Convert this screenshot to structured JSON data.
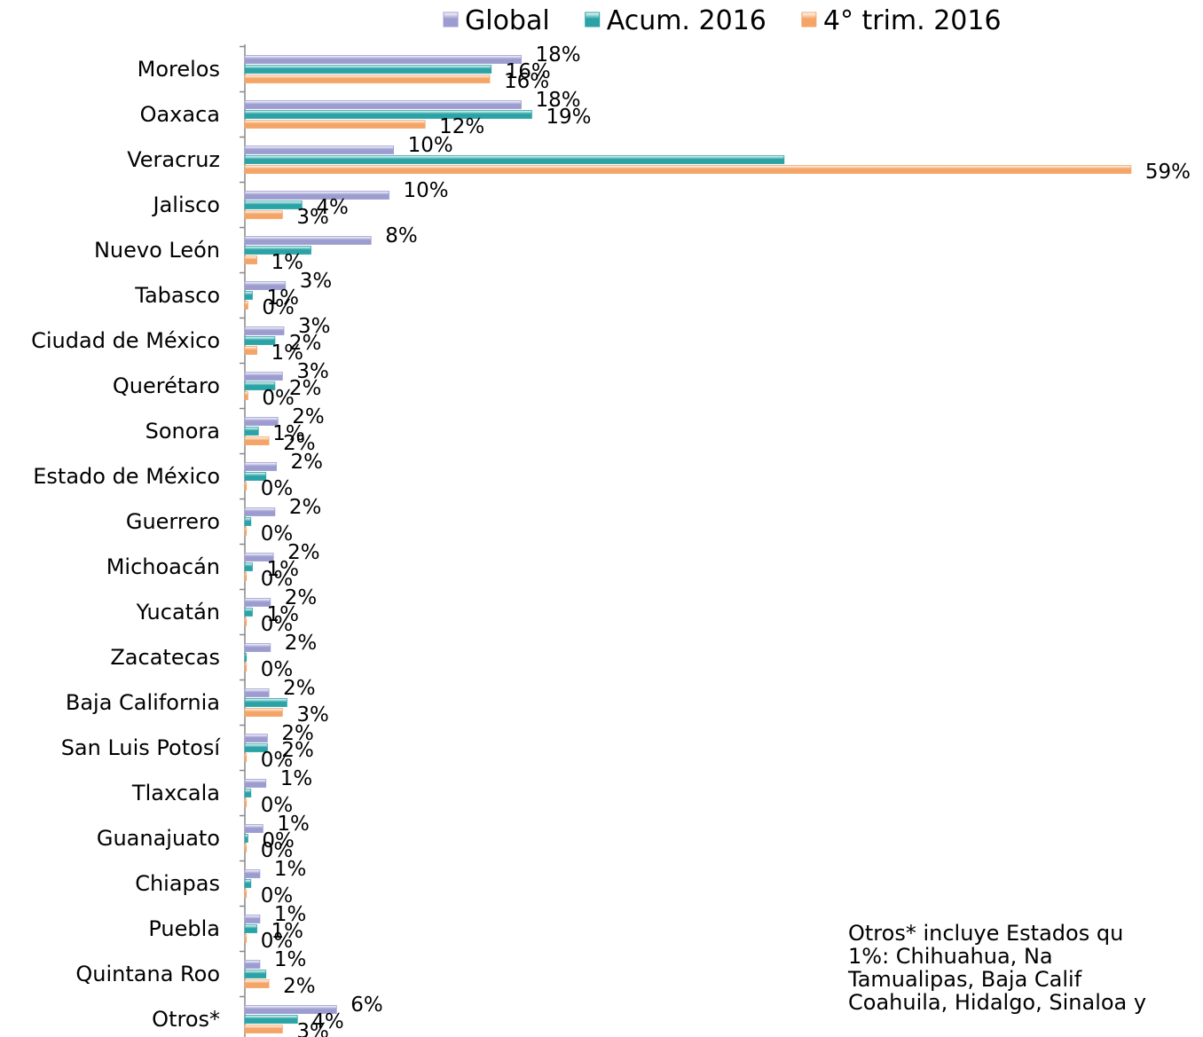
{
  "chart_data": {
    "type": "bar",
    "orientation": "horizontal",
    "categories": [
      "Morelos",
      "Oaxaca",
      "Veracruz",
      "Jalisco",
      "Nuevo León",
      "Tabasco",
      "Ciudad de México",
      "Querétaro",
      "Sonora",
      "Estado de México",
      "Guerrero",
      "Michoacán",
      "Yucatán",
      "Zacatecas",
      "Baja California",
      "San Luis Potosí",
      "Tlaxcala",
      "Guanajuato",
      "Chiapas",
      "Puebla",
      "Quintana Roo",
      "Otros*"
    ],
    "series": [
      {
        "name": "Global",
        "color": "#9c9cd0",
        "values": [
          18.4,
          18.4,
          9.9,
          9.6,
          8.4,
          2.7,
          2.6,
          2.5,
          2.2,
          2.1,
          2.0,
          1.9,
          1.7,
          1.7,
          1.6,
          1.5,
          1.4,
          1.2,
          1.0,
          1.0,
          1.0,
          6.1
        ],
        "value_labels": [
          "18%",
          "18%",
          "10%",
          "10%",
          "8%",
          "3%",
          "3%",
          "3%",
          "2%",
          "2%",
          "2%",
          "2%",
          "2%",
          "2%",
          "2%",
          "2%",
          "1%",
          "1%",
          "1%",
          "1%",
          "1%",
          "6%"
        ]
      },
      {
        "name": "Acum. 2016",
        "color": "#2aa3a6",
        "values": [
          16.4,
          19.1,
          35.9,
          3.8,
          4.4,
          0.5,
          2.0,
          2.0,
          0.9,
          1.4,
          0.4,
          0.5,
          0.5,
          0.1,
          2.8,
          1.5,
          0.4,
          0.2,
          0.4,
          0.8,
          1.4,
          3.5
        ],
        "value_labels": [
          "16%",
          "19%",
          null,
          "4%",
          null,
          "1%",
          "2%",
          "2%",
          "1%",
          null,
          null,
          "1%",
          "1%",
          null,
          null,
          "2%",
          null,
          "0%",
          null,
          "1%",
          null,
          "4%"
        ]
      },
      {
        "name": "4° trim. 2016",
        "color": "#f4a466",
        "values": [
          16.3,
          12.0,
          59,
          2.5,
          0.8,
          0.2,
          0.8,
          0.2,
          1.6,
          0.1,
          0.1,
          0.1,
          0.1,
          0.1,
          2.5,
          0.1,
          0.1,
          0.1,
          0.1,
          0.1,
          1.6,
          2.5
        ],
        "value_labels": [
          "16%",
          "12%",
          "59%",
          "3%",
          "1%",
          "0%",
          "1%",
          "0%",
          "2%",
          "0%",
          "0%",
          "0%",
          "0%",
          "0%",
          "3%",
          "0%",
          "0%",
          "0%",
          "0%",
          "0%",
          "2%",
          "3%"
        ]
      }
    ],
    "annotation": [
      "Otros* incluye Estados qu",
      "1%:      Chihuahua,       Na",
      "Tamualipas,     Baja    Calif",
      "Coahuila, Hidalgo, Sinaloa y"
    ]
  }
}
